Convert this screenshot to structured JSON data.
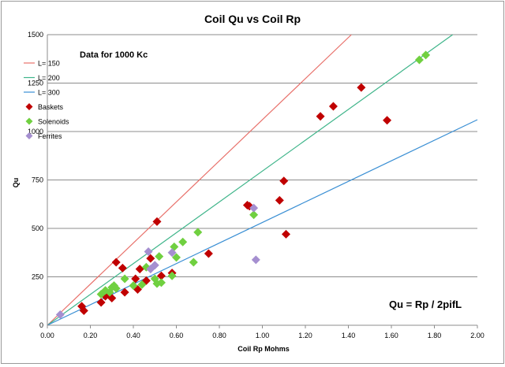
{
  "chart_data": {
    "type": "scatter",
    "title": "Coil Qu vs Coil Rp",
    "xlabel": "Coil Rp  Mohms",
    "ylabel": "Qu",
    "xlim": [
      0,
      2.0
    ],
    "ylim": [
      0,
      1500
    ],
    "x_ticks": [
      "0.00",
      "0.20",
      "0.40",
      "0.60",
      "0.80",
      "1.00",
      "1.20",
      "1.40",
      "1.60",
      "1.80",
      "2.00"
    ],
    "y_ticks": [
      "0",
      "250",
      "500",
      "750",
      "1000",
      "1250",
      "1500"
    ],
    "grid": "horizontal",
    "legend_position": "left",
    "annotations": {
      "data_note": "Data for 1000 Kc",
      "formula": "Qu = Rp / 2pifL"
    },
    "lines": [
      {
        "name": "L= 150",
        "color": "#e8706a",
        "x": [
          0,
          1.414
        ],
        "y": [
          0,
          1500
        ]
      },
      {
        "name": "L= 200",
        "color": "#3fb58a",
        "x": [
          0,
          1.885
        ],
        "y": [
          0,
          1500
        ]
      },
      {
        "name": "L= 300",
        "color": "#3a8fd4",
        "x": [
          0,
          2.0
        ],
        "y": [
          0,
          1061
        ]
      }
    ],
    "series": [
      {
        "name": "Baskets",
        "marker": "diamond",
        "color": "#c00000",
        "points": [
          [
            0.16,
            98
          ],
          [
            0.17,
            75
          ],
          [
            0.25,
            118
          ],
          [
            0.27,
            150
          ],
          [
            0.3,
            140
          ],
          [
            0.32,
            325
          ],
          [
            0.35,
            295
          ],
          [
            0.36,
            170
          ],
          [
            0.41,
            240
          ],
          [
            0.42,
            185
          ],
          [
            0.43,
            290
          ],
          [
            0.46,
            230
          ],
          [
            0.48,
            345
          ],
          [
            0.51,
            535
          ],
          [
            0.53,
            255
          ],
          [
            0.58,
            270
          ],
          [
            0.75,
            370
          ],
          [
            0.93,
            620
          ],
          [
            0.94,
            615
          ],
          [
            1.08,
            645
          ],
          [
            1.1,
            745
          ],
          [
            1.11,
            470
          ],
          [
            1.27,
            1078
          ],
          [
            1.33,
            1130
          ],
          [
            1.46,
            1227
          ],
          [
            1.58,
            1058
          ]
        ]
      },
      {
        "name": "Solenoids",
        "marker": "diamond",
        "color": "#70d040",
        "points": [
          [
            0.25,
            160
          ],
          [
            0.27,
            180
          ],
          [
            0.29,
            170
          ],
          [
            0.3,
            195
          ],
          [
            0.31,
            205
          ],
          [
            0.32,
            190
          ],
          [
            0.36,
            240
          ],
          [
            0.4,
            205
          ],
          [
            0.44,
            210
          ],
          [
            0.46,
            300
          ],
          [
            0.5,
            240
          ],
          [
            0.51,
            215
          ],
          [
            0.52,
            355
          ],
          [
            0.53,
            220
          ],
          [
            0.58,
            255
          ],
          [
            0.59,
            405
          ],
          [
            0.6,
            350
          ],
          [
            0.63,
            430
          ],
          [
            0.68,
            325
          ],
          [
            0.7,
            480
          ],
          [
            0.96,
            570
          ],
          [
            1.73,
            1370
          ],
          [
            1.76,
            1395
          ]
        ]
      },
      {
        "name": "Ferrites",
        "marker": "diamond",
        "color": "#a58fd0",
        "points": [
          [
            0.06,
            55
          ],
          [
            0.47,
            380
          ],
          [
            0.48,
            290
          ],
          [
            0.5,
            310
          ],
          [
            0.58,
            375
          ],
          [
            0.96,
            605
          ],
          [
            0.97,
            338
          ]
        ]
      }
    ]
  }
}
